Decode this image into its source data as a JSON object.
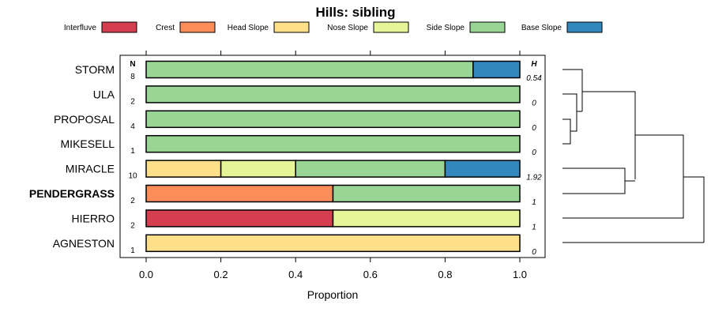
{
  "chart_data": {
    "type": "bar",
    "subtype": "stacked-horizontal-proportion",
    "title": "Hills: sibling",
    "xlabel": "Proportion",
    "xlim": [
      0,
      1
    ],
    "xticks": [
      "0.0",
      "0.2",
      "0.4",
      "0.6",
      "0.8",
      "1.0"
    ],
    "xtick_values": [
      0,
      0.2,
      0.4,
      0.6,
      0.8,
      1.0
    ],
    "n_header": "N",
    "h_header": "H",
    "legend": [
      {
        "name": "Interfluve",
        "color": "#d53e4f"
      },
      {
        "name": "Crest",
        "color": "#fc8d59"
      },
      {
        "name": "Head Slope",
        "color": "#fee08b"
      },
      {
        "name": "Nose Slope",
        "color": "#e6f598"
      },
      {
        "name": "Side Slope",
        "color": "#99d594"
      },
      {
        "name": "Base Slope",
        "color": "#3288bd"
      }
    ],
    "rows": [
      {
        "label": "STORM",
        "bold": false,
        "n": "8",
        "h": "0.54",
        "segments": [
          {
            "cat": "Side Slope",
            "value": 0.875
          },
          {
            "cat": "Base Slope",
            "value": 0.125
          }
        ]
      },
      {
        "label": "ULA",
        "bold": false,
        "n": "2",
        "h": "0",
        "segments": [
          {
            "cat": "Side Slope",
            "value": 1.0
          }
        ]
      },
      {
        "label": "PROPOSAL",
        "bold": false,
        "n": "4",
        "h": "0",
        "segments": [
          {
            "cat": "Side Slope",
            "value": 1.0
          }
        ]
      },
      {
        "label": "MIKESELL",
        "bold": false,
        "n": "1",
        "h": "0",
        "segments": [
          {
            "cat": "Side Slope",
            "value": 1.0
          }
        ]
      },
      {
        "label": "MIRACLE",
        "bold": false,
        "n": "10",
        "h": "1.92",
        "segments": [
          {
            "cat": "Head Slope",
            "value": 0.2
          },
          {
            "cat": "Nose Slope",
            "value": 0.2
          },
          {
            "cat": "Side Slope",
            "value": 0.4
          },
          {
            "cat": "Base Slope",
            "value": 0.2
          }
        ]
      },
      {
        "label": "PENDERGRASS",
        "bold": true,
        "n": "2",
        "h": "1",
        "segments": [
          {
            "cat": "Crest",
            "value": 0.5
          },
          {
            "cat": "Side Slope",
            "value": 0.5
          }
        ]
      },
      {
        "label": "HIERRO",
        "bold": false,
        "n": "2",
        "h": "1",
        "segments": [
          {
            "cat": "Interfluve",
            "value": 0.5
          },
          {
            "cat": "Nose Slope",
            "value": 0.5
          }
        ]
      },
      {
        "label": "AGNESTON",
        "bold": false,
        "n": "1",
        "h": "0",
        "segments": [
          {
            "cat": "Head Slope",
            "value": 1.0
          }
        ]
      }
    ]
  }
}
